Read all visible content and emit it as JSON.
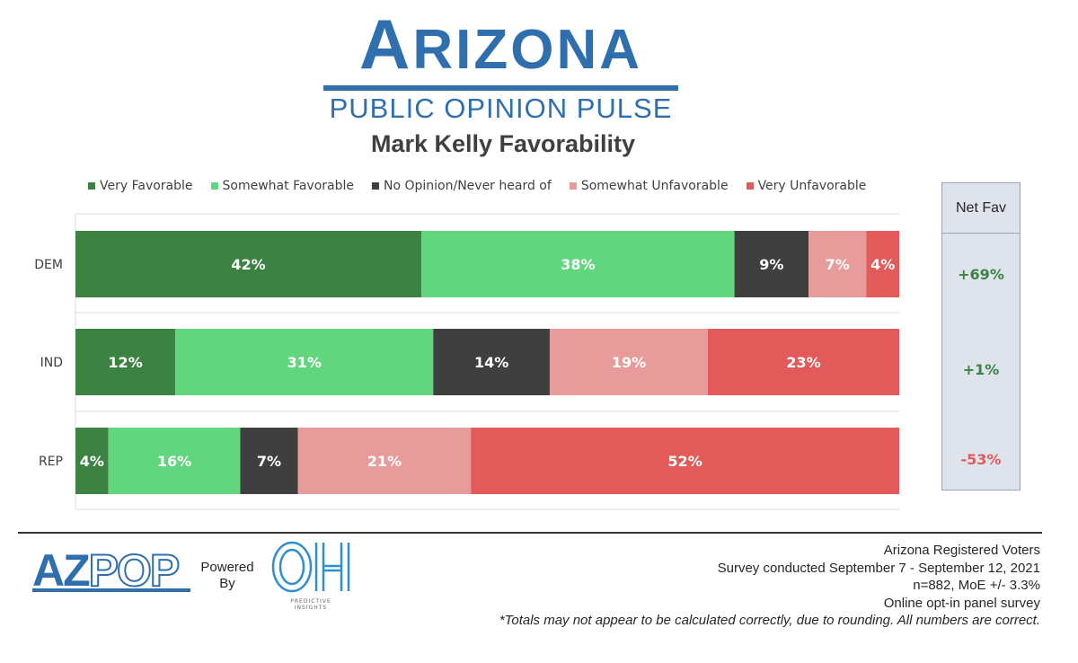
{
  "header": {
    "logo_main_first": "A",
    "logo_main_rest": "RIZONA",
    "logo_sub": "PUBLIC OPINION PULSE"
  },
  "chart_data": {
    "type": "bar",
    "orientation": "horizontal-stacked-100",
    "title": "Mark Kelly Favorability",
    "categories": [
      "DEM",
      "IND",
      "REP"
    ],
    "series": [
      {
        "name": "Very Favorable",
        "color": "#3b8243",
        "values": [
          42,
          12,
          4
        ],
        "labels": [
          "42%",
          "12%",
          "4%"
        ]
      },
      {
        "name": "Somewhat Favorable",
        "color": "#62d57f",
        "values": [
          38,
          31,
          16
        ],
        "labels": [
          "38%",
          "31%",
          "16%"
        ]
      },
      {
        "name": "No Opinion/Never heard of",
        "color": "#3f3f3f",
        "values": [
          9,
          14,
          7
        ],
        "labels": [
          "9%",
          "14%",
          "7%"
        ]
      },
      {
        "name": "Somewhat Unfavorable",
        "color": "#e79b9b",
        "values": [
          7,
          19,
          21
        ],
        "labels": [
          "7%",
          "19%",
          "21%"
        ]
      },
      {
        "name": "Very Unfavorable",
        "color": "#e25a5a",
        "values": [
          4,
          23,
          52
        ],
        "labels": [
          "4%",
          "23%",
          "52%"
        ]
      }
    ],
    "legend_position": "top",
    "xlim": [
      0,
      100
    ],
    "grid": false
  },
  "net_fav": {
    "header": "Net Fav",
    "values": [
      "+69%",
      "+1%",
      "-53%"
    ],
    "colors": [
      "#3b8243",
      "#3b8243",
      "#e25a5a"
    ]
  },
  "footer": {
    "azpop_az": "AZ",
    "azpop_pop": "POP",
    "powered": "Powered",
    "by": "By",
    "oh_text": "OH",
    "oh_caption_1": "PREDICTIVE",
    "oh_caption_2": "INSIGHTS",
    "source_lines": [
      "Arizona Registered Voters",
      "Survey conducted September 7 - September 12, 2021",
      "n=882, MoE +/- 3.3%",
      "Online opt-in panel survey"
    ],
    "note": "*Totals may not appear to be calculated correctly, due to rounding. All numbers are correct."
  }
}
